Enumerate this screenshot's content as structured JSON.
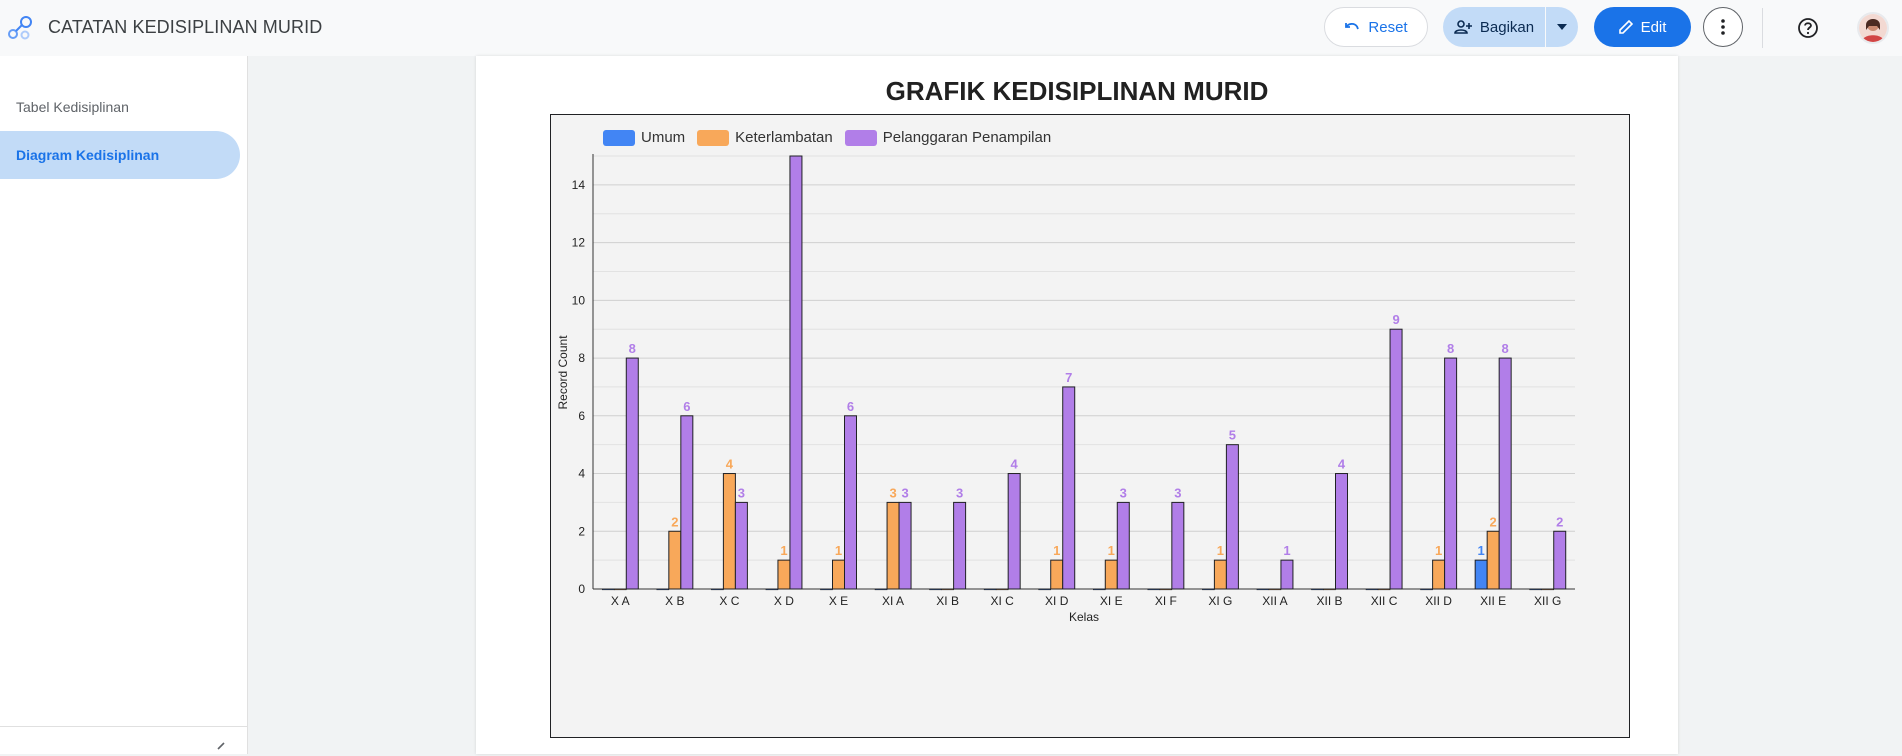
{
  "app": {
    "title": "CATATAN KEDISIPLINAN MURID",
    "logo_icon": "looker-studio-icon"
  },
  "toolbar": {
    "reset_label": "Reset",
    "share_label": "Bagikan",
    "edit_label": "Edit"
  },
  "sidebar": {
    "items": [
      {
        "label": "Tabel Kedisiplinan",
        "active": false
      },
      {
        "label": "Diagram Kedisiplinan",
        "active": true
      }
    ]
  },
  "colors": {
    "umum": "#4285f4",
    "keterlambatan": "#f8a85a",
    "pelanggaran": "#b17ee8",
    "accent": "#1a73e8"
  },
  "chart_data": {
    "type": "bar",
    "title": "GRAFIK KEDISIPLINAN MURID",
    "xlabel": "Kelas",
    "ylabel": "Record Count",
    "ylim": [
      0,
      15
    ],
    "yticks": [
      0,
      2,
      4,
      6,
      8,
      10,
      12,
      14
    ],
    "grid": true,
    "legend_position": "top-left",
    "categories": [
      "X A",
      "X B",
      "X C",
      "X D",
      "X E",
      "XI A",
      "XI B",
      "XI C",
      "XI D",
      "XI E",
      "XI F",
      "XI G",
      "XII A",
      "XII B",
      "XII C",
      "XII D",
      "XII E",
      "XII G"
    ],
    "series": [
      {
        "name": "Umum",
        "values": [
          0,
          0,
          0,
          0,
          0,
          0,
          0,
          0,
          0,
          0,
          0,
          0,
          0,
          0,
          0,
          0,
          1,
          0
        ]
      },
      {
        "name": "Keterlambatan",
        "values": [
          0,
          2,
          4,
          1,
          1,
          3,
          0,
          0,
          1,
          1,
          0,
          1,
          0,
          0,
          0,
          1,
          2,
          0
        ]
      },
      {
        "name": "Pelanggaran Penampilan",
        "values": [
          8,
          6,
          3,
          15,
          6,
          3,
          3,
          4,
          7,
          3,
          3,
          5,
          1,
          4,
          9,
          8,
          8,
          2
        ]
      }
    ]
  }
}
